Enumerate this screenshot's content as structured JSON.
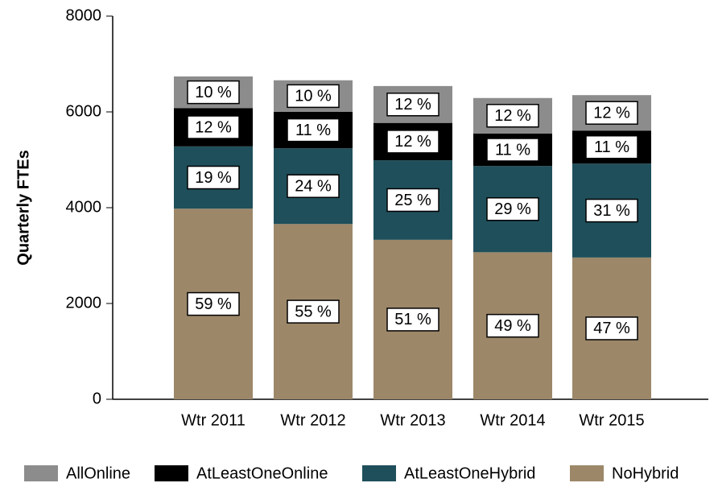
{
  "chart_data": {
    "type": "stacked_bar",
    "ylabel": "Quarterly FTEs",
    "categories": [
      "Wtr 2011",
      "Wtr 2012",
      "Wtr 2013",
      "Wtr 2014",
      "Wtr 2015"
    ],
    "series": [
      {
        "name": "NoHybrid",
        "color": "#9c8769",
        "values": [
          3980,
          3660,
          3330,
          3070,
          2960
        ],
        "share_labels": [
          "59 %",
          "55 %",
          "51 %",
          "49 %",
          "47 %"
        ]
      },
      {
        "name": "AtLeastOneHybrid",
        "color": "#1f4f5b",
        "values": [
          1300,
          1580,
          1660,
          1800,
          1960
        ],
        "share_labels": [
          "19 %",
          "24 %",
          "25 %",
          "29 %",
          "31 %"
        ]
      },
      {
        "name": "AtLeastOneOnline",
        "color": "#000000",
        "values": [
          800,
          760,
          780,
          680,
          690
        ],
        "share_labels": [
          "12 %",
          "11 %",
          "12 %",
          "11 %",
          "11 %"
        ]
      },
      {
        "name": "AllOnline",
        "color": "#8c8c8c",
        "values": [
          660,
          660,
          770,
          740,
          740
        ],
        "share_labels": [
          "10 %",
          "10 %",
          "12 %",
          "12 %",
          "12 %"
        ]
      }
    ],
    "legend_order": [
      3,
      2,
      1,
      0
    ],
    "ylim": [
      0,
      8000
    ],
    "yticks": [
      0,
      2000,
      4000,
      6000,
      8000
    ]
  }
}
